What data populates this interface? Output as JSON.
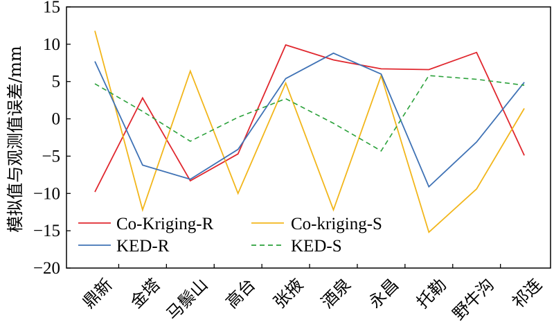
{
  "chart_data": {
    "type": "line",
    "title": "",
    "xlabel": "",
    "ylabel": "模拟值与观测值误差/mm",
    "ylim": [
      -20,
      15
    ],
    "yticks": [
      15,
      10,
      5,
      0,
      -5,
      -10,
      -15,
      -20
    ],
    "grid": false,
    "legend_position": "bottom-left",
    "categories": [
      "鼎新",
      "金塔",
      "马鬃山",
      "高台",
      "张掖",
      "酒泉",
      "永昌",
      "托勒",
      "野牛沟",
      "祁连"
    ],
    "series": [
      {
        "name": "Co-Kriging-R",
        "color": "#e0272e",
        "dash": "solid",
        "values": [
          -9.8,
          2.8,
          -8.3,
          -4.7,
          9.9,
          7.9,
          6.7,
          6.6,
          8.9,
          -4.9
        ]
      },
      {
        "name": "Co-kriging-S",
        "color": "#f2b61b",
        "dash": "solid",
        "values": [
          11.8,
          -12.2,
          6.4,
          -10.0,
          4.8,
          -12.2,
          5.8,
          -15.2,
          -9.4,
          1.4
        ]
      },
      {
        "name": "KED-R",
        "color": "#3f72b5",
        "dash": "solid",
        "values": [
          7.7,
          -6.2,
          -8.1,
          -4.1,
          5.4,
          8.8,
          6.0,
          -9.1,
          -3.1,
          4.9
        ]
      },
      {
        "name": "KED-S",
        "color": "#2aa13a",
        "dash": "dashed",
        "values": [
          4.7,
          1.0,
          -3.0,
          0.2,
          2.7,
          -0.6,
          -4.3,
          5.8,
          5.3,
          4.5
        ]
      }
    ]
  }
}
